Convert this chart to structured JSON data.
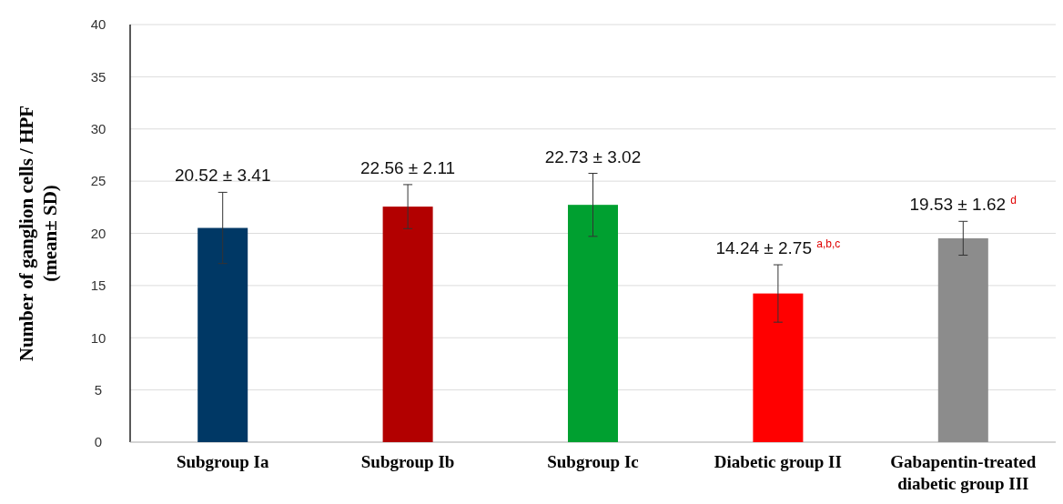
{
  "chart_data": {
    "type": "bar",
    "ylabel": "Number of ganglion cells / HPF (mean± SD)",
    "categories": [
      "Subgroup Ia",
      "Subgroup Ib",
      "Subgroup Ic",
      "Diabetic group II",
      "Gabapentin-treated diabetic group III"
    ],
    "values": [
      20.52,
      22.56,
      22.73,
      14.24,
      19.53
    ],
    "errors": [
      3.41,
      2.11,
      3.02,
      2.75,
      1.62
    ],
    "colors": [
      "#003865",
      "#b20000",
      "#00a030",
      "#ff0000",
      "#8c8c8c"
    ],
    "value_labels": [
      "20.52 ± 3.41",
      "22.56 ± 2.11",
      "22.73 ± 3.02",
      "14.24 ± 2.75 $^{a,b,c}$",
      "19.53 ± 1.62 $^{d}$"
    ],
    "ylim": [
      0,
      40
    ],
    "yticks": [
      0,
      5,
      10,
      15,
      20,
      25,
      30,
      35,
      40
    ],
    "grid": "y"
  }
}
